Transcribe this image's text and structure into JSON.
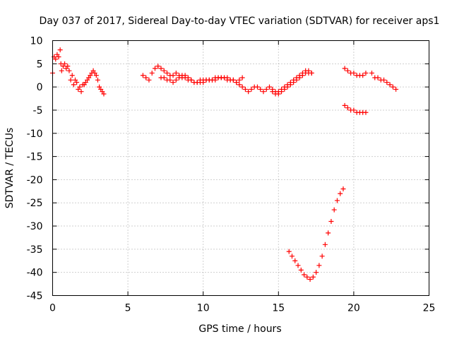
{
  "chart_data": {
    "type": "scatter",
    "title": "Day 037 of 2017, Sidereal Day-to-day VTEC variation (SDTVAR) for receiver aps1",
    "xlabel": "GPS time / hours",
    "ylabel": "SDTVAR / TECUs",
    "xlim": [
      0,
      25
    ],
    "ylim": [
      -45,
      10
    ],
    "xticks": [
      0,
      5,
      10,
      15,
      20,
      25
    ],
    "yticks": [
      10,
      5,
      0,
      -5,
      -10,
      -15,
      -20,
      -25,
      -30,
      -35,
      -40,
      -45
    ],
    "grid": true,
    "marker": "plus",
    "color": "#ff0000",
    "series": [
      {
        "x": [
          0.0,
          0.1,
          0.2,
          0.3,
          0.4,
          0.5,
          0.55,
          0.6,
          0.7,
          0.8,
          0.9,
          1.0,
          1.1,
          1.2,
          1.3,
          1.4,
          1.5,
          1.6,
          1.7,
          1.8,
          1.9,
          2.0,
          2.1,
          2.2,
          2.3,
          2.4,
          2.5,
          2.6,
          2.7,
          2.8,
          2.9,
          3.0,
          3.1,
          3.2,
          3.3,
          3.4
        ],
        "y": [
          3.0,
          6.5,
          6.0,
          7.0,
          6.5,
          8.0,
          5.0,
          3.5,
          4.5,
          5.0,
          4.0,
          4.5,
          3.5,
          1.5,
          2.5,
          0.5,
          1.5,
          1.0,
          -0.5,
          0.0,
          -1.0,
          0.5,
          0.5,
          1.0,
          1.5,
          2.0,
          2.5,
          3.0,
          3.5,
          3.0,
          2.5,
          1.5,
          0.0,
          -0.5,
          -1.0,
          -1.5
        ]
      },
      {
        "x": [
          6.0,
          6.2,
          6.4,
          6.6,
          6.8,
          7.0,
          7.2,
          7.4,
          7.6,
          7.8,
          8.0,
          8.2,
          8.4,
          8.6,
          8.8,
          9.0,
          9.2,
          9.4,
          9.6,
          9.8,
          10.0,
          10.2,
          10.4,
          10.6,
          10.8,
          11.0,
          11.2,
          11.4,
          11.6,
          11.8,
          12.0,
          12.2,
          12.4,
          12.6
        ],
        "y": [
          2.5,
          2.0,
          1.5,
          3.0,
          4.0,
          4.5,
          4.0,
          3.5,
          3.0,
          2.5,
          2.5,
          3.0,
          2.5,
          2.0,
          2.0,
          1.5,
          1.5,
          1.0,
          1.0,
          1.5,
          1.5,
          1.5,
          1.5,
          1.5,
          1.5,
          2.0,
          2.0,
          2.0,
          1.5,
          1.5,
          1.5,
          1.0,
          1.5,
          2.0
        ]
      },
      {
        "x": [
          7.2,
          7.4,
          7.6,
          7.8,
          8.0,
          8.2,
          8.4,
          8.6,
          8.8,
          9.0,
          9.2,
          9.4,
          9.6,
          9.8,
          10.0,
          10.2,
          10.4,
          10.6,
          10.8,
          11.0,
          11.2,
          11.4,
          11.6,
          11.8,
          12.0,
          12.2,
          12.4,
          12.6,
          12.8,
          13.0,
          13.2,
          13.4,
          13.6,
          13.8,
          14.0,
          14.2,
          14.4,
          14.6,
          14.8,
          15.0,
          15.2,
          15.4,
          15.6,
          15.8,
          16.0,
          16.2,
          16.4,
          16.6,
          16.8,
          17.0,
          17.2
        ],
        "y": [
          2.0,
          2.0,
          1.5,
          1.5,
          1.0,
          1.5,
          2.0,
          2.5,
          2.5,
          2.0,
          1.5,
          1.0,
          1.0,
          1.0,
          1.0,
          1.5,
          1.5,
          1.5,
          2.0,
          2.0,
          2.0,
          2.0,
          2.0,
          1.5,
          1.5,
          1.0,
          0.5,
          0.0,
          -0.5,
          -1.0,
          -0.5,
          0.0,
          0.0,
          -0.5,
          -1.0,
          -0.5,
          0.0,
          -1.0,
          -1.5,
          -1.5,
          -1.0,
          -0.5,
          0.0,
          0.5,
          1.0,
          1.5,
          2.0,
          2.5,
          3.0,
          3.0,
          3.0
        ]
      },
      {
        "x": [
          14.6,
          14.8,
          15.0,
          15.2,
          15.4,
          15.6,
          15.8,
          16.0,
          16.2,
          16.4,
          16.6,
          16.8,
          17.0,
          17.2
        ],
        "y": [
          -0.5,
          -1.0,
          -1.0,
          -0.5,
          0.0,
          0.5,
          1.0,
          1.5,
          2.0,
          2.5,
          3.0,
          3.5,
          3.5,
          3.0
        ]
      },
      {
        "x": [
          15.7,
          15.9,
          16.1,
          16.3,
          16.5,
          16.7,
          16.9,
          17.1,
          17.3,
          17.5,
          17.7,
          17.9,
          18.1,
          18.3,
          18.5,
          18.7,
          18.9,
          19.1,
          19.3
        ],
        "y": [
          -35.5,
          -36.5,
          -37.5,
          -38.5,
          -39.5,
          -40.5,
          -41.0,
          -41.5,
          -41.0,
          -40.0,
          -38.5,
          -36.5,
          -34.0,
          -31.5,
          -29.0,
          -26.5,
          -24.5,
          -23.0,
          -22.0
        ]
      },
      {
        "x": [
          19.4,
          19.6,
          19.8,
          20.0,
          20.2,
          20.4,
          20.6,
          20.8
        ],
        "y": [
          4.0,
          3.5,
          3.0,
          3.0,
          2.5,
          2.5,
          2.5,
          3.0
        ]
      },
      {
        "x": [
          19.4,
          19.6,
          19.8,
          20.0,
          20.2,
          20.4,
          20.6,
          20.8
        ],
        "y": [
          -4.0,
          -4.5,
          -5.0,
          -5.0,
          -5.5,
          -5.5,
          -5.5,
          -5.5
        ]
      },
      {
        "x": [
          21.2,
          21.4,
          21.6,
          21.8,
          22.0,
          22.2,
          22.4,
          22.6,
          22.8
        ],
        "y": [
          3.0,
          2.0,
          2.0,
          1.5,
          1.5,
          1.0,
          0.5,
          0.0,
          -0.5
        ]
      }
    ]
  }
}
